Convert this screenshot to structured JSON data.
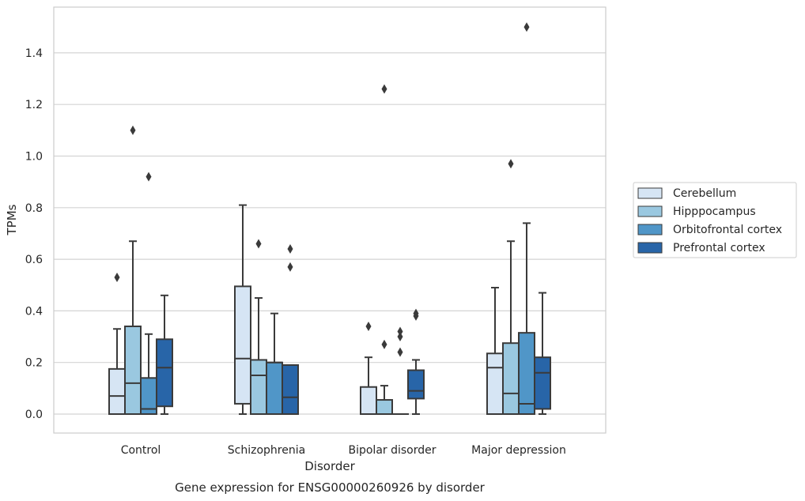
{
  "caption": "Gene expression for ENSG00000260926 by disorder",
  "chart_data": {
    "type": "box",
    "xlabel": "Disorder",
    "ylabel": "TPMs",
    "ylim": [
      -0.07,
      1.58
    ],
    "yticks": [
      0.0,
      0.2,
      0.4,
      0.6,
      0.8,
      1.0,
      1.2,
      1.4
    ],
    "ytick_labels": [
      "0.0",
      "0.2",
      "0.4",
      "0.6",
      "0.8",
      "1.0",
      "1.2",
      "1.4"
    ],
    "grid": "horizontal",
    "legend_position": "right",
    "categories": [
      "Control",
      "Schizophrenia",
      "Bipolar disorder",
      "Major depression"
    ],
    "series": [
      {
        "name": "Cerebellum",
        "color": "#d6e5f4",
        "boxes": [
          {
            "whisker_low": 0.0,
            "q1": 0.0,
            "median": 0.07,
            "q3": 0.175,
            "whisker_high": 0.33,
            "outliers": [
              0.53
            ]
          },
          {
            "whisker_low": 0.0,
            "q1": 0.04,
            "median": 0.215,
            "q3": 0.495,
            "whisker_high": 0.81,
            "outliers": []
          },
          {
            "whisker_low": 0.0,
            "q1": 0.0,
            "median": 0.0,
            "q3": 0.105,
            "whisker_high": 0.22,
            "outliers": [
              0.34
            ]
          },
          {
            "whisker_low": 0.0,
            "q1": 0.0,
            "median": 0.18,
            "q3": 0.235,
            "whisker_high": 0.49,
            "outliers": []
          }
        ]
      },
      {
        "name": "Hipppocampus",
        "color": "#9ac8e0",
        "boxes": [
          {
            "whisker_low": 0.0,
            "q1": 0.0,
            "median": 0.12,
            "q3": 0.34,
            "whisker_high": 0.67,
            "outliers": [
              1.1
            ]
          },
          {
            "whisker_low": 0.0,
            "q1": 0.0,
            "median": 0.15,
            "q3": 0.21,
            "whisker_high": 0.45,
            "outliers": [
              0.66
            ]
          },
          {
            "whisker_low": 0.0,
            "q1": 0.0,
            "median": 0.0,
            "q3": 0.055,
            "whisker_high": 0.11,
            "outliers": [
              0.27,
              1.26
            ]
          },
          {
            "whisker_low": 0.0,
            "q1": 0.0,
            "median": 0.08,
            "q3": 0.275,
            "whisker_high": 0.67,
            "outliers": [
              0.97
            ]
          }
        ]
      },
      {
        "name": "Orbitofrontal cortex",
        "color": "#5096c8",
        "boxes": [
          {
            "whisker_low": 0.0,
            "q1": 0.0,
            "median": 0.02,
            "q3": 0.14,
            "whisker_high": 0.31,
            "outliers": [
              0.92
            ]
          },
          {
            "whisker_low": 0.0,
            "q1": 0.0,
            "median": 0.2,
            "q3": 0.2,
            "whisker_high": 0.39,
            "outliers": []
          },
          {
            "whisker_low": 0.0,
            "q1": 0.0,
            "median": 0.0,
            "q3": 0.0,
            "whisker_high": 0.0,
            "outliers": [
              0.24,
              0.3,
              0.32
            ]
          },
          {
            "whisker_low": 0.0,
            "q1": 0.0,
            "median": 0.04,
            "q3": 0.315,
            "whisker_high": 0.74,
            "outliers": [
              1.5
            ]
          }
        ]
      },
      {
        "name": "Prefrontal cortex",
        "color": "#2865a8",
        "boxes": [
          {
            "whisker_low": 0.0,
            "q1": 0.03,
            "median": 0.18,
            "q3": 0.29,
            "whisker_high": 0.46,
            "outliers": []
          },
          {
            "whisker_low": 0.0,
            "q1": 0.0,
            "median": 0.065,
            "q3": 0.19,
            "whisker_high": 0.19,
            "outliers": [
              0.57,
              0.64
            ]
          },
          {
            "whisker_low": 0.0,
            "q1": 0.06,
            "median": 0.09,
            "q3": 0.17,
            "whisker_high": 0.21,
            "outliers": [
              0.38,
              0.39
            ]
          },
          {
            "whisker_low": 0.0,
            "q1": 0.02,
            "median": 0.16,
            "q3": 0.22,
            "whisker_high": 0.47,
            "outliers": []
          }
        ]
      }
    ]
  }
}
